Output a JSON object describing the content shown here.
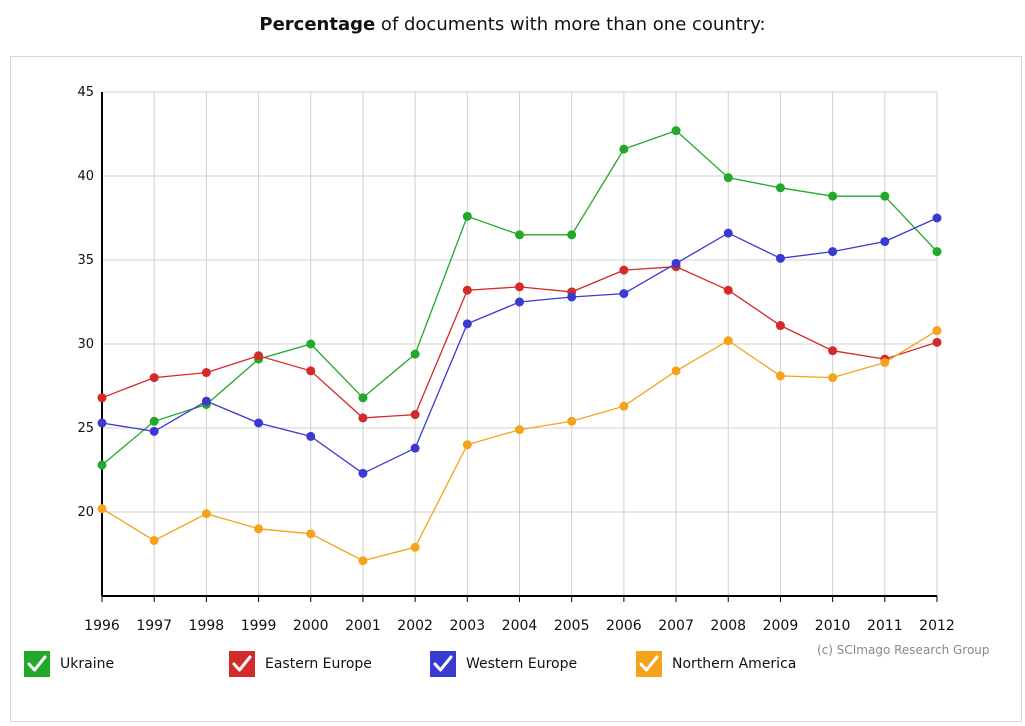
{
  "title": {
    "bold": "Percentage",
    "rest": " of documents with more than one country:"
  },
  "credit": "(c) SCImago Research Group",
  "chart_data": {
    "type": "line",
    "title": "Percentage of documents with more than one country:",
    "x": [
      "1996",
      "1997",
      "1998",
      "1999",
      "2000",
      "2001",
      "2002",
      "2003",
      "2004",
      "2005",
      "2006",
      "2007",
      "2008",
      "2009",
      "2010",
      "2011",
      "2012"
    ],
    "ylim": [
      15,
      45
    ],
    "yticks": [
      20,
      25,
      30,
      35,
      40,
      45
    ],
    "grid": true,
    "legend_position": "bottom",
    "series": [
      {
        "name": "Ukraine",
        "color": "#22a82a",
        "values": [
          22.8,
          25.4,
          26.4,
          29.1,
          30.0,
          26.8,
          29.4,
          37.6,
          36.5,
          36.5,
          41.6,
          42.7,
          39.9,
          39.3,
          38.8,
          38.8,
          35.5
        ]
      },
      {
        "name": "Eastern Europe",
        "color": "#d42a2a",
        "values": [
          26.8,
          28.0,
          28.3,
          29.3,
          28.4,
          25.6,
          25.8,
          33.2,
          33.4,
          33.1,
          34.4,
          34.6,
          33.2,
          31.1,
          29.6,
          29.1,
          30.1
        ]
      },
      {
        "name": "Western Europe",
        "color": "#3a3ad0",
        "values": [
          25.3,
          24.8,
          26.6,
          25.3,
          24.5,
          22.3,
          23.8,
          31.2,
          32.5,
          32.8,
          33.0,
          34.8,
          36.6,
          35.1,
          35.5,
          36.1,
          37.5
        ]
      },
      {
        "name": "Northern America",
        "color": "#f5a31a",
        "values": [
          20.2,
          18.3,
          19.9,
          19.0,
          18.7,
          17.1,
          17.9,
          24.0,
          24.9,
          25.4,
          26.3,
          28.4,
          30.2,
          28.1,
          28.0,
          28.9,
          30.8
        ]
      }
    ]
  }
}
